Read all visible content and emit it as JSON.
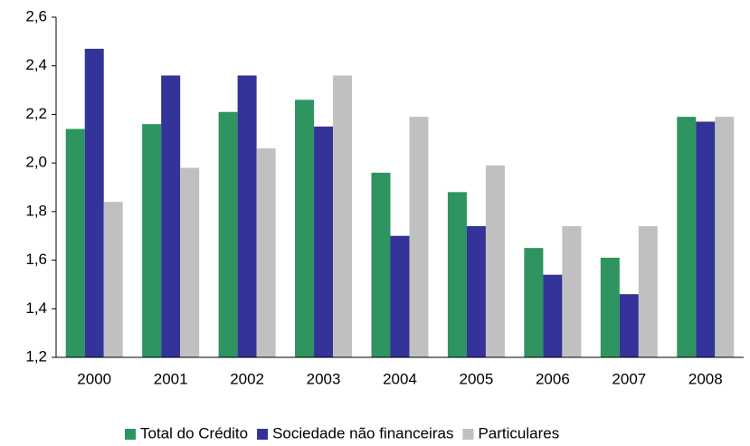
{
  "chart_data": {
    "type": "bar",
    "categories": [
      "2000",
      "2001",
      "2002",
      "2003",
      "2004",
      "2005",
      "2006",
      "2007",
      "2008"
    ],
    "series": [
      {
        "name": "Total do Crédito",
        "color": "#2e9460",
        "values": [
          2.14,
          2.16,
          2.21,
          2.26,
          1.96,
          1.88,
          1.65,
          1.61,
          2.19
        ]
      },
      {
        "name": "Sociedade não financeiras",
        "color": "#333399",
        "values": [
          2.47,
          2.36,
          2.36,
          2.15,
          1.7,
          1.74,
          1.54,
          1.46,
          2.17
        ]
      },
      {
        "name": "Particulares",
        "color": "#c0c0c0",
        "values": [
          1.84,
          1.98,
          2.06,
          2.36,
          2.19,
          1.99,
          1.74,
          1.74,
          2.19
        ]
      }
    ],
    "ylim": [
      1.2,
      2.6
    ],
    "yticks": [
      {
        "value": 1.2,
        "label": "1,2"
      },
      {
        "value": 1.4,
        "label": "1,4"
      },
      {
        "value": 1.6,
        "label": "1,6"
      },
      {
        "value": 1.8,
        "label": "1,8"
      },
      {
        "value": 2.0,
        "label": "2,0"
      },
      {
        "value": 2.2,
        "label": "2,2"
      },
      {
        "value": 2.4,
        "label": "2,4"
      },
      {
        "value": 2.6,
        "label": "2,6"
      }
    ],
    "grid": false,
    "legend": "bottom"
  }
}
